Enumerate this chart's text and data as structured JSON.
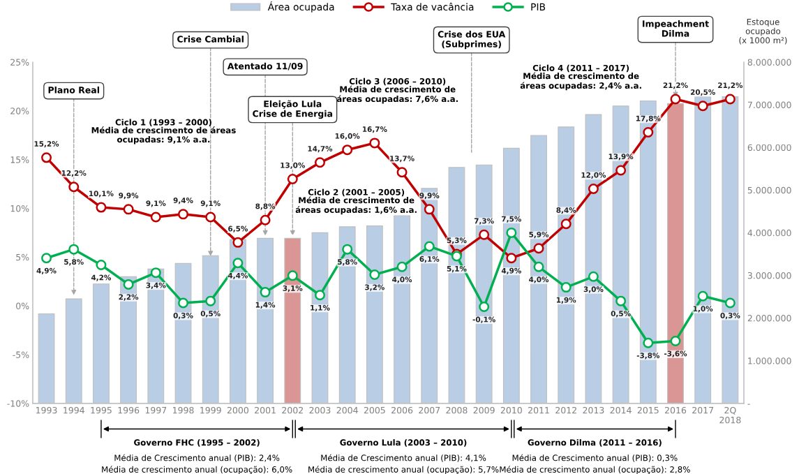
{
  "chart_data": {
    "type": "bar",
    "categories": [
      "1993",
      "1994",
      "1995",
      "1996",
      "1997",
      "1998",
      "1999",
      "2000",
      "2001",
      "2002",
      "2003",
      "2004",
      "2005",
      "2006",
      "2007",
      "2008",
      "2009",
      "2010",
      "2011",
      "2012",
      "2013",
      "2014",
      "2015",
      "2016",
      "2017",
      "2Q\n2018"
    ],
    "series": [
      {
        "name": "Área ocupada",
        "axis": "y2",
        "color": "#b9cde5",
        "colors": [
          "#b9cde5",
          "#b9cde5",
          "#b9cde5",
          "#b9cde5",
          "#b9cde5",
          "#b9cde5",
          "#b9cde5",
          "#b9cde5",
          "#b9cde5",
          "#d99694",
          "#b9cde5",
          "#b9cde5",
          "#b9cde5",
          "#b9cde5",
          "#b9cde5",
          "#b9cde5",
          "#b9cde5",
          "#b9cde5",
          "#b9cde5",
          "#b9cde5",
          "#b9cde5",
          "#b9cde5",
          "#b9cde5",
          "#d99694",
          "#b9cde5",
          "#b9cde5"
        ],
        "values": [
          2100000,
          2450000,
          2800000,
          2970000,
          3150000,
          3280000,
          3460000,
          3840000,
          3870000,
          3870000,
          4000000,
          4140000,
          4160000,
          4400000,
          5040000,
          5530000,
          5590000,
          5980000,
          6280000,
          6480000,
          6770000,
          6970000,
          7090000,
          7030000,
          7190000,
          7190000
        ]
      },
      {
        "name": "Taxa de vacância",
        "type": "line",
        "color": "#c00000",
        "values": [
          15.2,
          12.2,
          10.1,
          9.9,
          9.1,
          9.4,
          9.1,
          6.5,
          8.8,
          13.0,
          14.7,
          16.0,
          16.7,
          13.7,
          9.9,
          5.3,
          7.3,
          4.9,
          5.9,
          8.4,
          12.0,
          13.9,
          17.8,
          21.2,
          20.5,
          21.2
        ],
        "value_labels": [
          "15,2%",
          "12,2%",
          "10,1%",
          "9,9%",
          "9,1%",
          "9,4%",
          "9,1%",
          "6,5%",
          "8,8%",
          "13,0%",
          "14,7%",
          "16,0%",
          "16,7%",
          "13,7%",
          "9,9%",
          "5,3%",
          "7,3%",
          "4,9%",
          "5,9%",
          "8,4%",
          "12,0%",
          "13,9%",
          "17,8%",
          "21,2%",
          "20,5%",
          "21,2%"
        ]
      },
      {
        "name": "PIB",
        "type": "line",
        "color": "#00b050",
        "values": [
          4.9,
          5.8,
          4.2,
          2.2,
          3.4,
          0.3,
          0.5,
          4.4,
          1.4,
          3.1,
          1.1,
          5.8,
          3.2,
          4.0,
          6.1,
          5.1,
          -0.1,
          7.5,
          4.0,
          1.9,
          3.0,
          0.5,
          -3.8,
          -3.6,
          1.0,
          0.3
        ],
        "value_labels": [
          "4,9%",
          "5,8%",
          "4,2%",
          "2,2%",
          "3,4%",
          "0,3%",
          "0,5%",
          "4,4%",
          "1,4%",
          "3,1%",
          "1,1%",
          "5,8%",
          "3,2%",
          "4,0%",
          "6,1%",
          "5,1%",
          "-0,1%",
          "7,5%",
          "4,0%",
          "1,9%",
          "3,0%",
          "0,5%",
          "-3,8%",
          "-3,6%",
          "1,0%",
          "0,3%"
        ]
      }
    ],
    "ylim": [
      -10,
      25
    ],
    "yticks": [
      {
        "value": -10,
        "label": "-10%"
      },
      {
        "value": -5,
        "label": "-5%"
      },
      {
        "value": 0,
        "label": "0%"
      },
      {
        "value": 5,
        "label": "5%"
      },
      {
        "value": 10,
        "label": "10%"
      },
      {
        "value": 15,
        "label": "15%"
      },
      {
        "value": 20,
        "label": "20%"
      },
      {
        "value": 25,
        "label": "25%"
      }
    ],
    "y2lim": [
      0,
      8000000
    ],
    "y2ticks": [
      {
        "value": 0,
        "label": "-"
      },
      {
        "value": 1000000,
        "label": "1.000.000"
      },
      {
        "value": 2000000,
        "label": "2.000.000"
      },
      {
        "value": 3000000,
        "label": "3.000.000"
      },
      {
        "value": 4000000,
        "label": "4.000.000"
      },
      {
        "value": 5000000,
        "label": "5.000.000"
      },
      {
        "value": 6000000,
        "label": "6.000.000"
      },
      {
        "value": 7000000,
        "label": "7.000.000"
      },
      {
        "value": 8000000,
        "label": "8.000.000"
      }
    ],
    "y2label": "Estoque\nocupado\n(x 1000 m²)",
    "marker": "circle",
    "line_style": "solid",
    "grid": false,
    "legend": "top",
    "annotations": [
      {
        "text": "Plano Real",
        "x": "1994",
        "y": 0.9
      },
      {
        "text": "Crise Cambial",
        "x": "1999",
        "y": 4.9
      },
      {
        "text": "Atentado 11/09",
        "x": "2001",
        "y": 7.0
      },
      {
        "text": "Eleição Lula\nCrise de Energia",
        "x": "2002",
        "y": 7.0
      },
      {
        "text": "Impeachment\nDilma",
        "x": "2016",
        "y": 21.2
      },
      "Crise dos EUA\n(Subprimes)",
      "Ciclo 1 (1993 – 2000)\nMédia de crescimento de áreas\nocupadas: 9,1% a.a.",
      "Ciclo 2 (2001 – 2005)\nMédia de crescimento de\náreas ocupadas: 1,6% a.a.",
      "Ciclo 3 (2006 – 2010)\nMédia de crescimento de\náreas ocupadas: 7,6% a.a.",
      "Ciclo 4 (2011 – 2017)\nMédia de crescimento de\náreas ocupadas: 2,4% a.a.",
      "Governo FHC (1995 – 2002)\nMédia de Crescimento anual (PIB): 2,4%\nMédia de crescimento anual (ocupação): 6,0%",
      "Governo Lula (2003 – 2010)\nMédia de Crescimento anual (PIB): 4,1%\nMédia de crescimento anual (ocupação): 5,7%",
      "Governo Dilma (2011 – 2016)\nMédia de Crescimento anual (PIB): 0,3%\nMédia de crescimento anual (ocupação): 2,8%"
    ]
  }
}
